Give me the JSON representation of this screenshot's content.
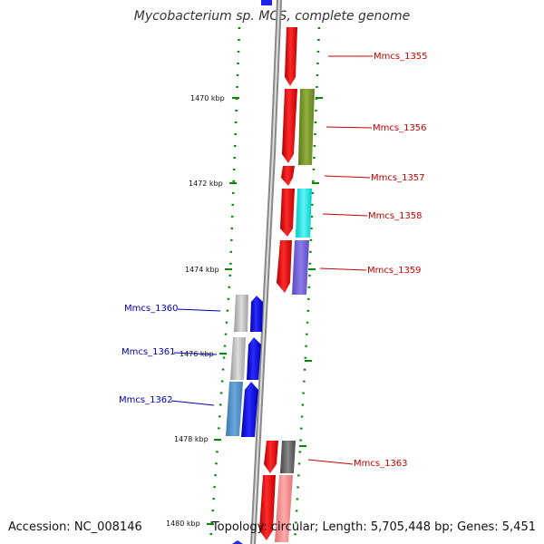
{
  "title": "Mycobacterium sp. MCS, complete genome",
  "accession_label": "Accession: NC_008146",
  "footer": "Topology: circular; Length: 5,705,448 bp; Genes: 5,451",
  "ticks": [
    "1470 kbp",
    "1472 kbp",
    "1474 kbp",
    "1476 kbp",
    "1478 kbp",
    "1480 kbp"
  ],
  "genes": [
    {
      "label": "Mmcs_1355",
      "strand": "forward"
    },
    {
      "label": "Mmcs_1356",
      "strand": "forward"
    },
    {
      "label": "Mmcs_1357",
      "strand": "forward"
    },
    {
      "label": "Mmcs_1358",
      "strand": "forward"
    },
    {
      "label": "Mmcs_1359",
      "strand": "forward"
    },
    {
      "label": "Mmcs_1360",
      "strand": "reverse"
    },
    {
      "label": "Mmcs_1361",
      "strand": "reverse"
    },
    {
      "label": "Mmcs_1362",
      "strand": "reverse"
    },
    {
      "label": "Mmcs_1363",
      "strand": "forward"
    }
  ],
  "colors": {
    "forward_label": "#cc0000",
    "reverse_label": "#0000bb",
    "cds_forward": "#ee0000",
    "cds_reverse": "#0000ee",
    "tick": "#008800",
    "backbone": "#999999"
  }
}
